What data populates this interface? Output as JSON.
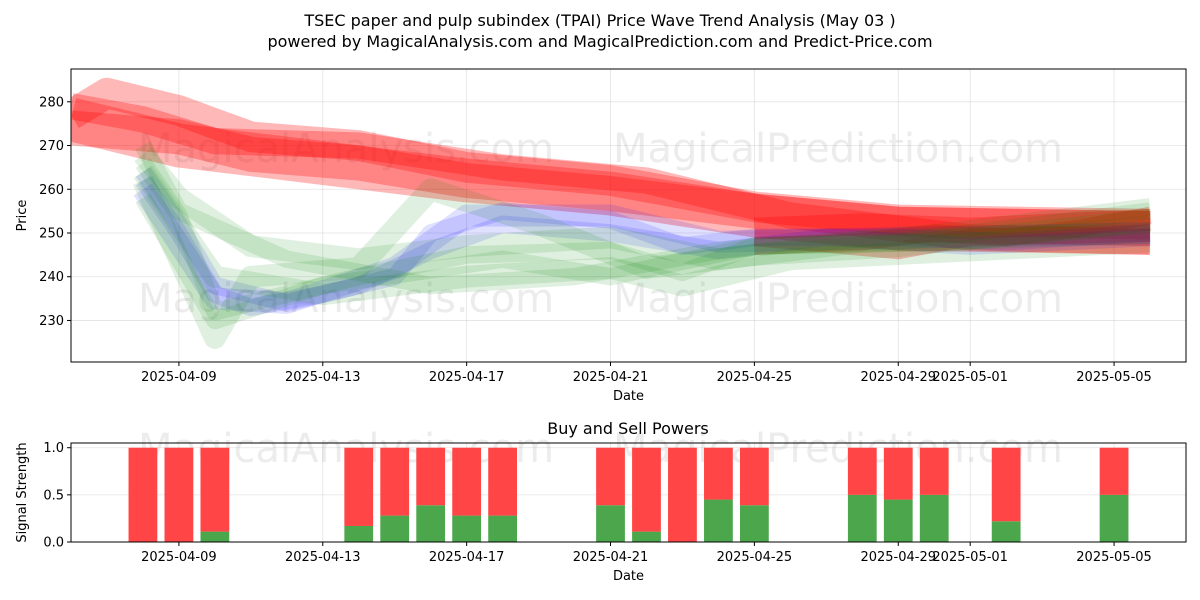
{
  "title_line1": "TSEC paper and pulp subindex (TPAI) Price Wave Trend Analysis (May 03 )",
  "title_line2": "powered by MagicalAnalysis.com and MagicalPrediction.com and Predict-Price.com",
  "watermarks": [
    "MagicalAnalysis.com",
    "MagicalPrediction.com"
  ],
  "colors": {
    "red": "#ff0000",
    "green": "#008000",
    "blue": "#0000ff",
    "buy": "#4ca64c",
    "sell": "#ff4545"
  },
  "chart_data": [
    {
      "type": "line",
      "xlabel": "Date",
      "ylabel": "Price",
      "ylim": [
        220.5,
        287.5
      ],
      "x_range": [
        "2025-04-06",
        "2025-05-07"
      ],
      "x_ticks": [
        "2025-04-09",
        "2025-04-13",
        "2025-04-17",
        "2025-04-21",
        "2025-04-25",
        "2025-04-29",
        "2025-05-01",
        "2025-05-05"
      ],
      "y_ticks": [
        230,
        240,
        250,
        260,
        270,
        280
      ],
      "grid": true,
      "series": [
        {
          "color": "red",
          "x": [
            "2025-04-06",
            "2025-04-07",
            "2025-04-09",
            "2025-04-10",
            "2025-04-11",
            "2025-04-14",
            "2025-04-17",
            "2025-04-21",
            "2025-04-25",
            "2025-04-29",
            "2025-05-06"
          ],
          "values": [
            277,
            282,
            278,
            275,
            272,
            270,
            265,
            262,
            256,
            253,
            252
          ],
          "band": 7
        },
        {
          "color": "red",
          "x": [
            "2025-04-06",
            "2025-04-09",
            "2025-04-11",
            "2025-04-14",
            "2025-04-17",
            "2025-04-21",
            "2025-04-25",
            "2025-04-29",
            "2025-05-06"
          ],
          "values": [
            274,
            272,
            268,
            266,
            262,
            259,
            255,
            252,
            251
          ],
          "band": 8
        },
        {
          "color": "red",
          "x": [
            "2025-04-06",
            "2025-04-08",
            "2025-04-10",
            "2025-04-14",
            "2025-04-18",
            "2025-04-22",
            "2025-04-26",
            "2025-05-01",
            "2025-05-06"
          ],
          "values": [
            279,
            276,
            271,
            270,
            265,
            262,
            254,
            249,
            248
          ],
          "band": 6
        },
        {
          "color": "red",
          "x": [
            "2025-04-06",
            "2025-04-09",
            "2025-04-13",
            "2025-04-17",
            "2025-04-21",
            "2025-04-25",
            "2025-04-29",
            "2025-05-06"
          ],
          "values": [
            276,
            270,
            266,
            262,
            259,
            254,
            251,
            250
          ],
          "band": 10
        },
        {
          "color": "red",
          "x": [
            "2025-04-25",
            "2025-04-28",
            "2025-04-30",
            "2025-05-02",
            "2025-05-04",
            "2025-05-06"
          ],
          "values": [
            247,
            248,
            250,
            249,
            251,
            254
          ],
          "band": 4
        },
        {
          "color": "red",
          "x": [
            "2025-04-25",
            "2025-04-29",
            "2025-05-01",
            "2025-05-06"
          ],
          "values": [
            249,
            246,
            249,
            250
          ],
          "band": 4
        },
        {
          "color": "red",
          "x": [
            "2025-04-25",
            "2025-04-28",
            "2025-05-01",
            "2025-05-06"
          ],
          "values": [
            251,
            252,
            251,
            253
          ],
          "band": 5
        },
        {
          "color": "blue",
          "x": [
            "2025-04-08",
            "2025-04-09",
            "2025-04-10",
            "2025-04-11",
            "2025-04-13",
            "2025-04-15",
            "2025-04-16",
            "2025-04-18",
            "2025-04-21",
            "2025-04-23",
            "2025-04-25",
            "2025-04-29",
            "2025-05-02",
            "2025-05-06"
          ],
          "values": [
            262,
            250,
            236,
            233,
            236,
            240,
            250,
            255,
            253,
            247,
            249,
            249,
            248,
            250
          ],
          "band": 4
        },
        {
          "color": "blue",
          "x": [
            "2025-04-08",
            "2025-04-09",
            "2025-04-10",
            "2025-04-12",
            "2025-04-14",
            "2025-04-16",
            "2025-04-18",
            "2025-04-21",
            "2025-04-24",
            "2025-04-27",
            "2025-05-01",
            "2025-05-06"
          ],
          "values": [
            264,
            252,
            238,
            234,
            238,
            246,
            252,
            250,
            246,
            249,
            247,
            249
          ],
          "band": 4
        },
        {
          "color": "blue",
          "x": [
            "2025-04-08",
            "2025-04-10",
            "2025-04-12",
            "2025-04-15",
            "2025-04-17",
            "2025-04-21",
            "2025-04-24",
            "2025-05-06"
          ],
          "values": [
            260,
            235,
            234,
            242,
            254,
            254,
            248,
            250
          ],
          "band": 5
        },
        {
          "color": "green",
          "x": [
            "2025-04-08",
            "2025-04-09",
            "2025-04-10",
            "2025-04-12",
            "2025-04-14",
            "2025-04-17",
            "2025-04-21",
            "2025-04-23",
            "2025-04-25",
            "2025-04-29",
            "2025-05-06"
          ],
          "values": [
            266,
            254,
            232,
            236,
            240,
            245,
            246,
            241,
            247,
            248,
            255
          ],
          "band": 4
        },
        {
          "color": "green",
          "x": [
            "2025-04-08",
            "2025-04-10",
            "2025-04-11",
            "2025-04-14",
            "2025-04-16",
            "2025-04-19",
            "2025-04-22",
            "2025-04-25",
            "2025-04-29",
            "2025-05-06"
          ],
          "values": [
            262,
            226,
            240,
            242,
            260,
            252,
            242,
            245,
            247,
            253
          ],
          "band": 5
        },
        {
          "color": "green",
          "x": [
            "2025-04-08",
            "2025-04-09",
            "2025-04-11",
            "2025-04-14",
            "2025-04-17",
            "2025-04-21",
            "2025-04-24",
            "2025-04-28",
            "2025-05-06"
          ],
          "values": [
            268,
            258,
            247,
            244,
            247,
            249,
            244,
            248,
            250
          ],
          "band": 5
        },
        {
          "color": "green",
          "x": [
            "2025-04-08",
            "2025-04-10",
            "2025-04-13",
            "2025-04-17",
            "2025-04-21",
            "2025-04-23",
            "2025-04-26",
            "2025-05-06"
          ],
          "values": [
            264,
            240,
            236,
            240,
            242,
            238,
            244,
            248
          ],
          "band": 5
        },
        {
          "color": "green",
          "x": [
            "2025-04-08",
            "2025-04-09",
            "2025-04-12",
            "2025-04-16",
            "2025-04-20",
            "2025-04-24",
            "2025-04-30",
            "2025-05-06"
          ],
          "values": [
            270,
            255,
            244,
            238,
            240,
            246,
            250,
            256
          ],
          "band": 4
        },
        {
          "color": "green",
          "x": [
            "2025-04-08",
            "2025-04-10",
            "2025-04-13",
            "2025-04-18",
            "2025-04-21",
            "2025-04-25",
            "2025-05-01",
            "2025-05-06"
          ],
          "values": [
            258,
            230,
            238,
            244,
            240,
            247,
            248,
            252
          ],
          "band": 4
        }
      ]
    },
    {
      "type": "bar",
      "title": "Buy and Sell Powers",
      "xlabel": "Date",
      "ylabel": "Signal Strength",
      "ylim": [
        0,
        1.05
      ],
      "x_range": [
        "2025-04-06",
        "2025-05-07"
      ],
      "x_ticks": [
        "2025-04-09",
        "2025-04-13",
        "2025-04-17",
        "2025-04-21",
        "2025-04-25",
        "2025-04-29",
        "2025-05-01",
        "2025-05-05"
      ],
      "y_ticks": [
        0.0,
        0.5,
        1.0
      ],
      "grid": true,
      "categories": [
        "2025-04-08",
        "2025-04-09",
        "2025-04-10",
        "2025-04-14",
        "2025-04-15",
        "2025-04-16",
        "2025-04-17",
        "2025-04-18",
        "2025-04-21",
        "2025-04-22",
        "2025-04-23",
        "2025-04-24",
        "2025-04-25",
        "2025-04-28",
        "2025-04-29",
        "2025-04-30",
        "2025-05-02",
        "2025-05-05"
      ],
      "series": [
        {
          "name": "buy",
          "color": "buy",
          "values": [
            0.0,
            0.0,
            0.11,
            0.17,
            0.28,
            0.39,
            0.28,
            0.28,
            0.39,
            0.11,
            0.0,
            0.45,
            0.39,
            0.5,
            0.45,
            0.5,
            0.22,
            0.5
          ]
        },
        {
          "name": "sell",
          "color": "sell",
          "values": [
            1.0,
            1.0,
            0.89,
            0.83,
            0.72,
            0.61,
            0.72,
            0.72,
            0.61,
            0.89,
            1.0,
            0.55,
            0.61,
            0.5,
            0.55,
            0.5,
            0.78,
            0.5
          ]
        }
      ]
    }
  ]
}
